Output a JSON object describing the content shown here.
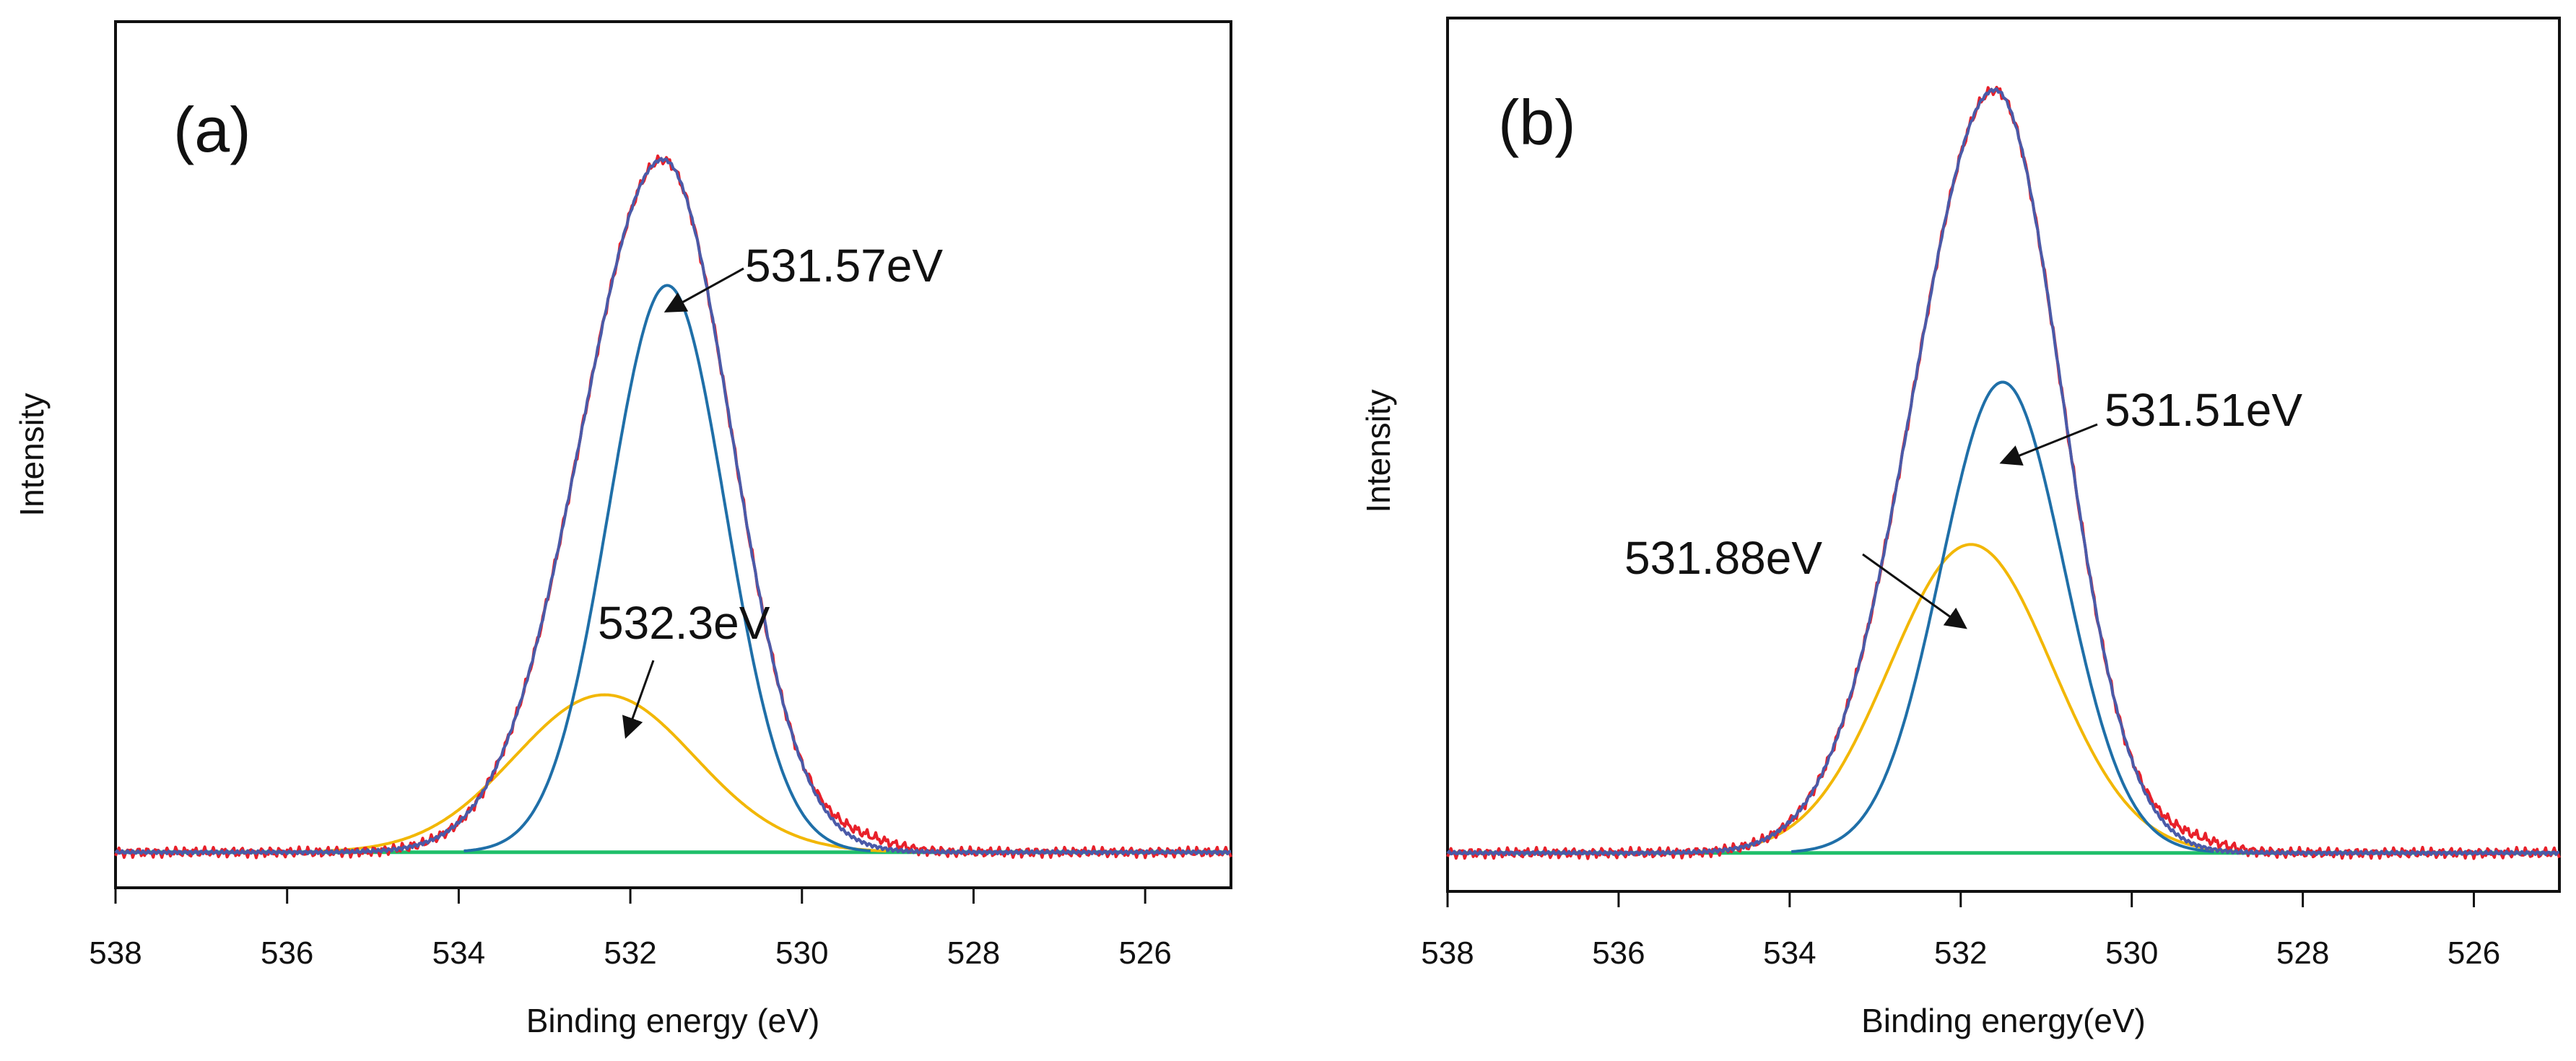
{
  "chart_data": [
    {
      "type": "line",
      "panel_label": "(a)",
      "xlabel": "Binding energy (eV)",
      "ylabel": "Intensity",
      "xlim": [
        538,
        525
      ],
      "ylim": [
        0,
        1.0
      ],
      "x_ticks": [
        "538",
        "536",
        "534",
        "532",
        "530",
        "528",
        "526"
      ],
      "series": [
        {
          "name": "raw",
          "color": "#e8202a",
          "center": 531.62,
          "amplitude": 0.88,
          "sigma_left": 0.95,
          "sigma_right": 0.8
        },
        {
          "name": "envelope",
          "color": "#4a5aa8",
          "center": 531.62,
          "amplitude": 0.88,
          "sigma_left": 0.95,
          "sigma_right": 0.8
        },
        {
          "name": "component-1",
          "color": "#1f6fa8",
          "center": 531.57,
          "amplitude": 0.72,
          "sigma_left": 0.68,
          "sigma_right": 0.68
        },
        {
          "name": "component-2",
          "color": "#f2b705",
          "center": 532.3,
          "amplitude": 0.2,
          "sigma_left": 1.05,
          "sigma_right": 1.05
        },
        {
          "name": "background",
          "color": "#1fbf6a",
          "baseline_left": 0.0,
          "baseline_right": 0.0
        }
      ],
      "annotations": [
        {
          "text": "531.57eV",
          "points_to": [
            531.57,
            0.72
          ]
        },
        {
          "text": "532.3eV",
          "points_to": [
            532.3,
            0.2
          ]
        }
      ]
    },
    {
      "type": "line",
      "panel_label": "(b)",
      "xlabel": "Binding energy(eV)",
      "ylabel": "Intensity",
      "xlim": [
        538,
        525
      ],
      "ylim": [
        0,
        1.0
      ],
      "x_ticks": [
        "538",
        "536",
        "534",
        "532",
        "530",
        "528",
        "526"
      ],
      "series": [
        {
          "name": "raw",
          "color": "#e8202a",
          "center": 531.6,
          "amplitude": 0.94,
          "sigma_left": 0.95,
          "sigma_right": 0.78
        },
        {
          "name": "envelope",
          "color": "#4a5aa8",
          "center": 531.6,
          "amplitude": 0.94,
          "sigma_left": 0.95,
          "sigma_right": 0.78
        },
        {
          "name": "component-1",
          "color": "#1f6fa8",
          "center": 531.51,
          "amplitude": 0.58,
          "sigma_left": 0.72,
          "sigma_right": 0.72
        },
        {
          "name": "component-2",
          "color": "#f2b705",
          "center": 531.88,
          "amplitude": 0.38,
          "sigma_left": 0.95,
          "sigma_right": 0.95
        },
        {
          "name": "background",
          "color": "#1fbf6a",
          "baseline_left": 0.0,
          "baseline_right": 0.0
        }
      ],
      "annotations": [
        {
          "text": "531.51eV",
          "points_to": [
            531.51,
            0.58
          ]
        },
        {
          "text": "531.88eV",
          "points_to": [
            531.88,
            0.38
          ]
        }
      ]
    }
  ]
}
